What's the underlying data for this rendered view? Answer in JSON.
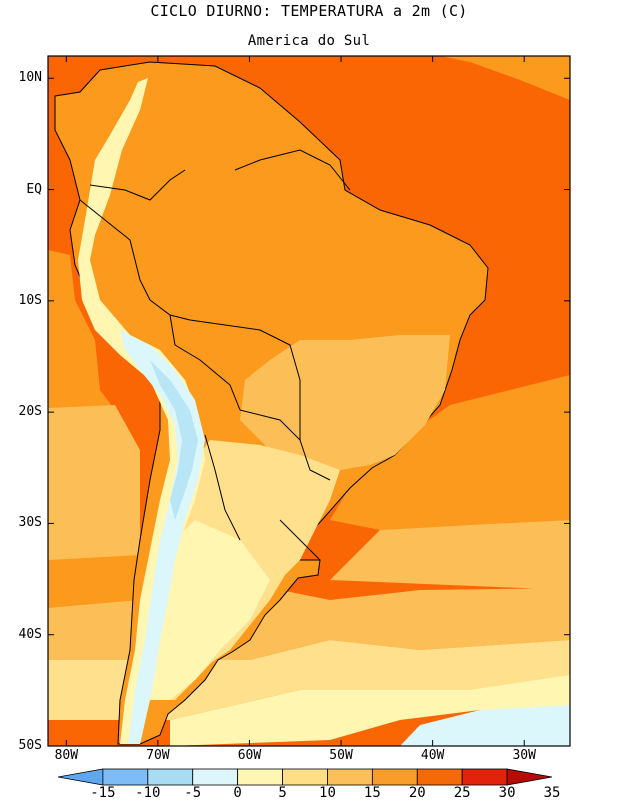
{
  "title": "CICLO DIURNO: TEMPERATURA a 2m (C)",
  "subtitle": "America do Sul",
  "lat_ticks": [
    {
      "label": "10N",
      "lat": 10
    },
    {
      "label": "EQ",
      "lat": 0
    },
    {
      "label": "10S",
      "lat": -10
    },
    {
      "label": "20S",
      "lat": -20
    },
    {
      "label": "30S",
      "lat": -30
    },
    {
      "label": "40S",
      "lat": -40
    },
    {
      "label": "50S",
      "lat": -50
    }
  ],
  "lon_ticks": [
    {
      "label": "80W",
      "lon": -80
    },
    {
      "label": "70W",
      "lon": -70
    },
    {
      "label": "60W",
      "lon": -60
    },
    {
      "label": "50W",
      "lon": -50
    },
    {
      "label": "40W",
      "lon": -40
    },
    {
      "label": "30W",
      "lon": -30
    }
  ],
  "extent": {
    "lon_min": -82,
    "lon_max": -25,
    "lat_min": -50,
    "lat_max": 12
  },
  "colorbar": {
    "labels": [
      "-15",
      "-10",
      "-5",
      "0",
      "5",
      "10",
      "15",
      "20",
      "25",
      "30",
      "35"
    ],
    "colors": [
      "#5fa8f0",
      "#7dbcf5",
      "#a7dcf3",
      "#dcf6fb",
      "#fff6b4",
      "#ffde86",
      "#fcc05a",
      "#f89c2a",
      "#f46a08",
      "#e3220c",
      "#b30d06"
    ]
  },
  "palette": {
    "ocean_hot": "#fb6605",
    "ocean_warm": "#fb9a1d",
    "ocean_mild": "#fcbf57",
    "ocean_cool": "#ffe08c",
    "ocean_cold": "#fff6b2",
    "coldest": "#dcf7fc",
    "land_hot": "#fb9a1d",
    "land_warm": "#fcbf57",
    "andes_cool": "#fff6b2",
    "andes_cold": "#dcf7fc",
    "andes_ice": "#b9e6f6",
    "coast": "#000000"
  }
}
